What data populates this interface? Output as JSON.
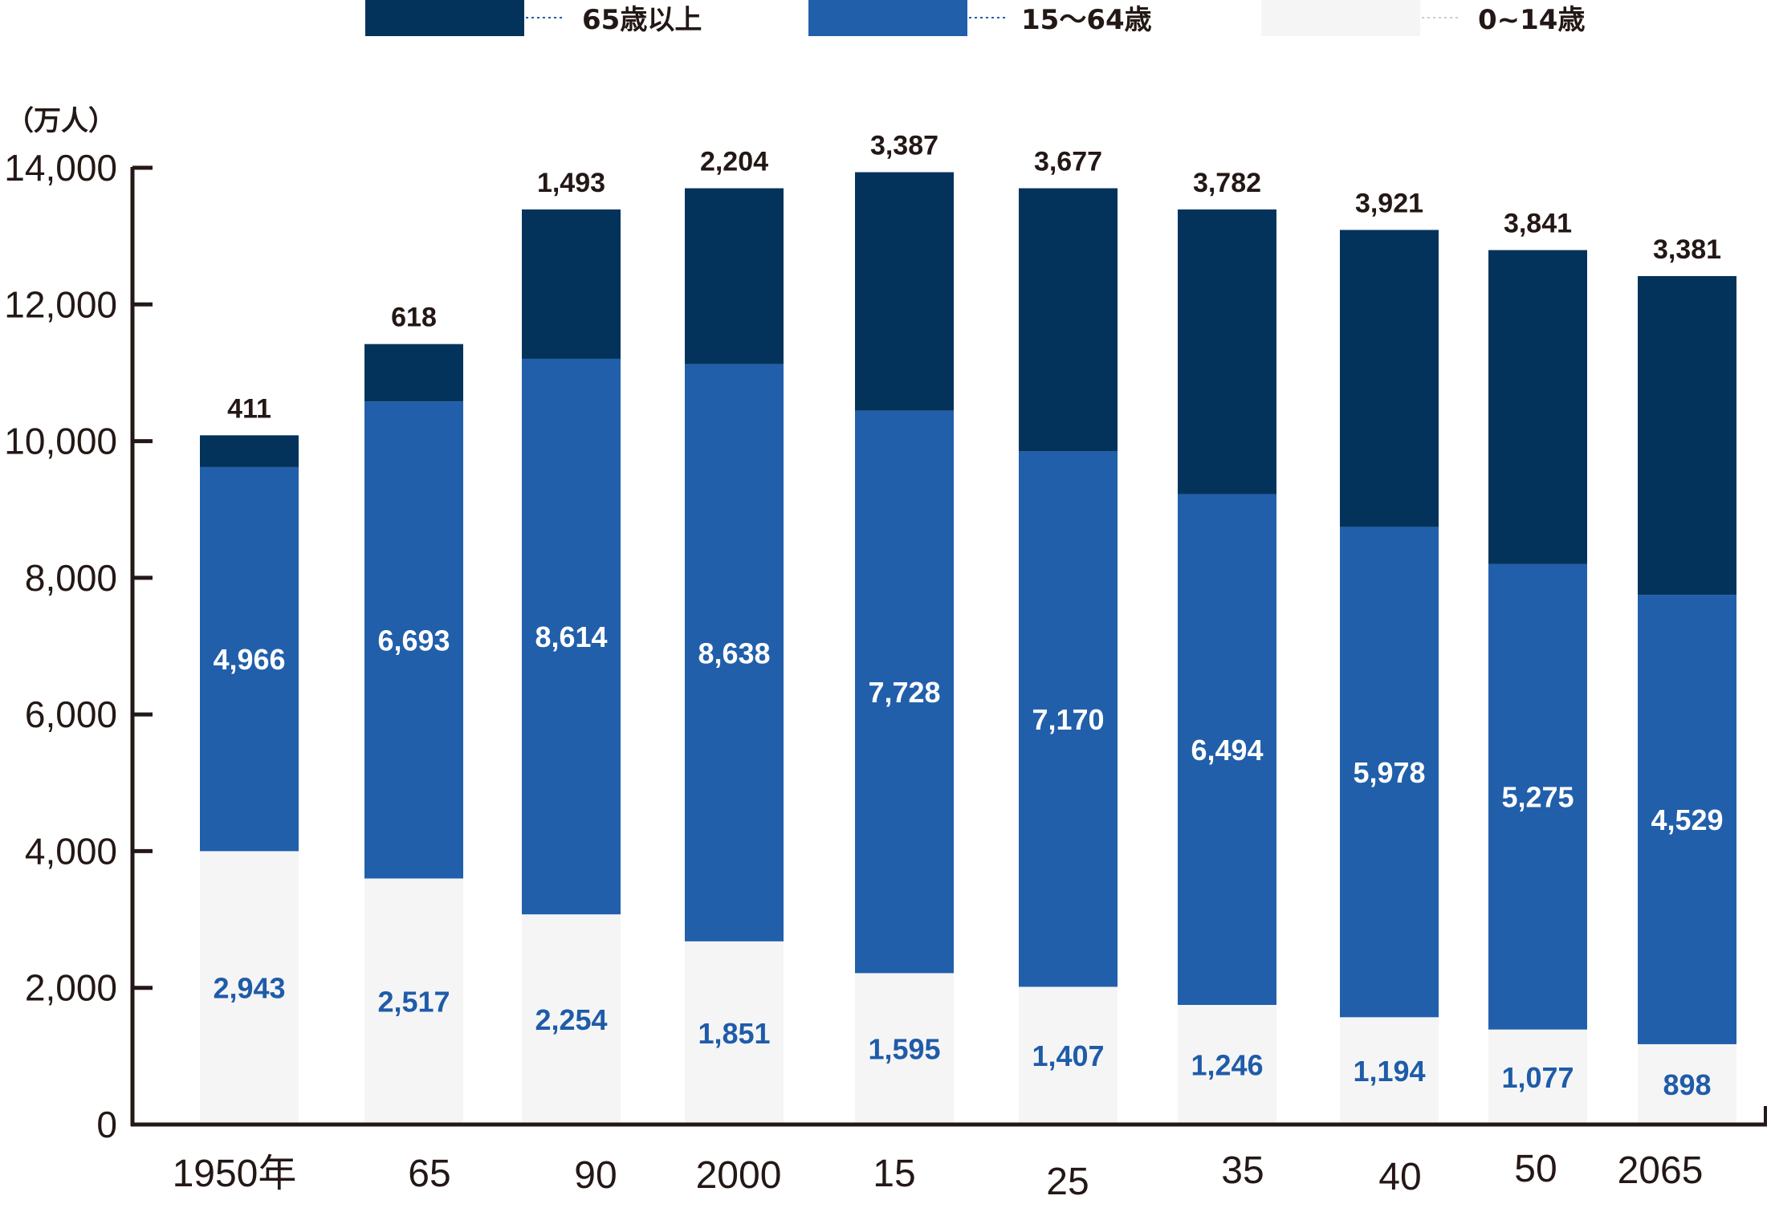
{
  "chart_data": {
    "type": "bar",
    "stacked": true,
    "title": "",
    "ylabel": "（万人）",
    "xlabel": "",
    "ylim": [
      0,
      14000
    ],
    "yticks": [
      0,
      2000,
      4000,
      6000,
      8000,
      10000,
      12000,
      14000
    ],
    "ytick_labels": [
      "0",
      "2,000",
      "4,000",
      "6,000",
      "8,000",
      "10,000",
      "12,000",
      "14,000"
    ],
    "categories": [
      "1950年",
      "65",
      "90",
      "2000",
      "15",
      "25",
      "35",
      "40",
      "50",
      "2065"
    ],
    "grid": false,
    "legend_position": "top",
    "series": [
      {
        "name": "0~14歳",
        "color": "#f5f5f6",
        "label_color": "#1f5ca8",
        "values": [
          2943,
          2517,
          2254,
          1851,
          1595,
          1407,
          1246,
          1194,
          1077,
          898
        ],
        "value_labels": [
          "2,943",
          "2,517",
          "2,254",
          "1,851",
          "1,595",
          "1,407",
          "1,246",
          "1,194",
          "1,077",
          "898"
        ],
        "plotted_stack_top": [
          4000,
          3600,
          3075,
          2680,
          2215,
          2015,
          1750,
          1570,
          1390,
          1175
        ]
      },
      {
        "name": "15~64歳",
        "color": "#215fab",
        "label_color": "#ffffff",
        "values": [
          4966,
          6693,
          8614,
          8638,
          7728,
          7170,
          6494,
          5978,
          5275,
          4529
        ],
        "value_labels": [
          "4,966",
          "6,693",
          "8,614",
          "8,638",
          "7,728",
          "7,170",
          "6,494",
          "5,978",
          "5,275",
          "4,529"
        ],
        "plotted_stack_top": [
          9620,
          10580,
          11205,
          11125,
          10445,
          9850,
          9225,
          8745,
          8200,
          7750
        ]
      },
      {
        "name": "65歳以上",
        "color": "#03335b",
        "label_color": "#231815",
        "values": [
          411,
          618,
          1493,
          2204,
          3387,
          3677,
          3782,
          3921,
          3841,
          3381
        ],
        "value_labels": [
          "411",
          "618",
          "1,493",
          "2,204",
          "3,387",
          "3,677",
          "3,782",
          "3,921",
          "3,841",
          "3,381"
        ],
        "plotted_stack_top": [
          10085,
          11420,
          13390,
          13700,
          13935,
          13700,
          13390,
          13090,
          12795,
          12415
        ]
      }
    ],
    "legend": [
      {
        "label": "65歳以上",
        "color": "#03335b",
        "dot_color": "#1f5ca8"
      },
      {
        "label": "15～64歳",
        "color": "#215fab",
        "dot_color": "#215fab"
      },
      {
        "label": "0~14歳",
        "color": "#f5f5f6",
        "dot_color": "#cccccc"
      }
    ]
  }
}
